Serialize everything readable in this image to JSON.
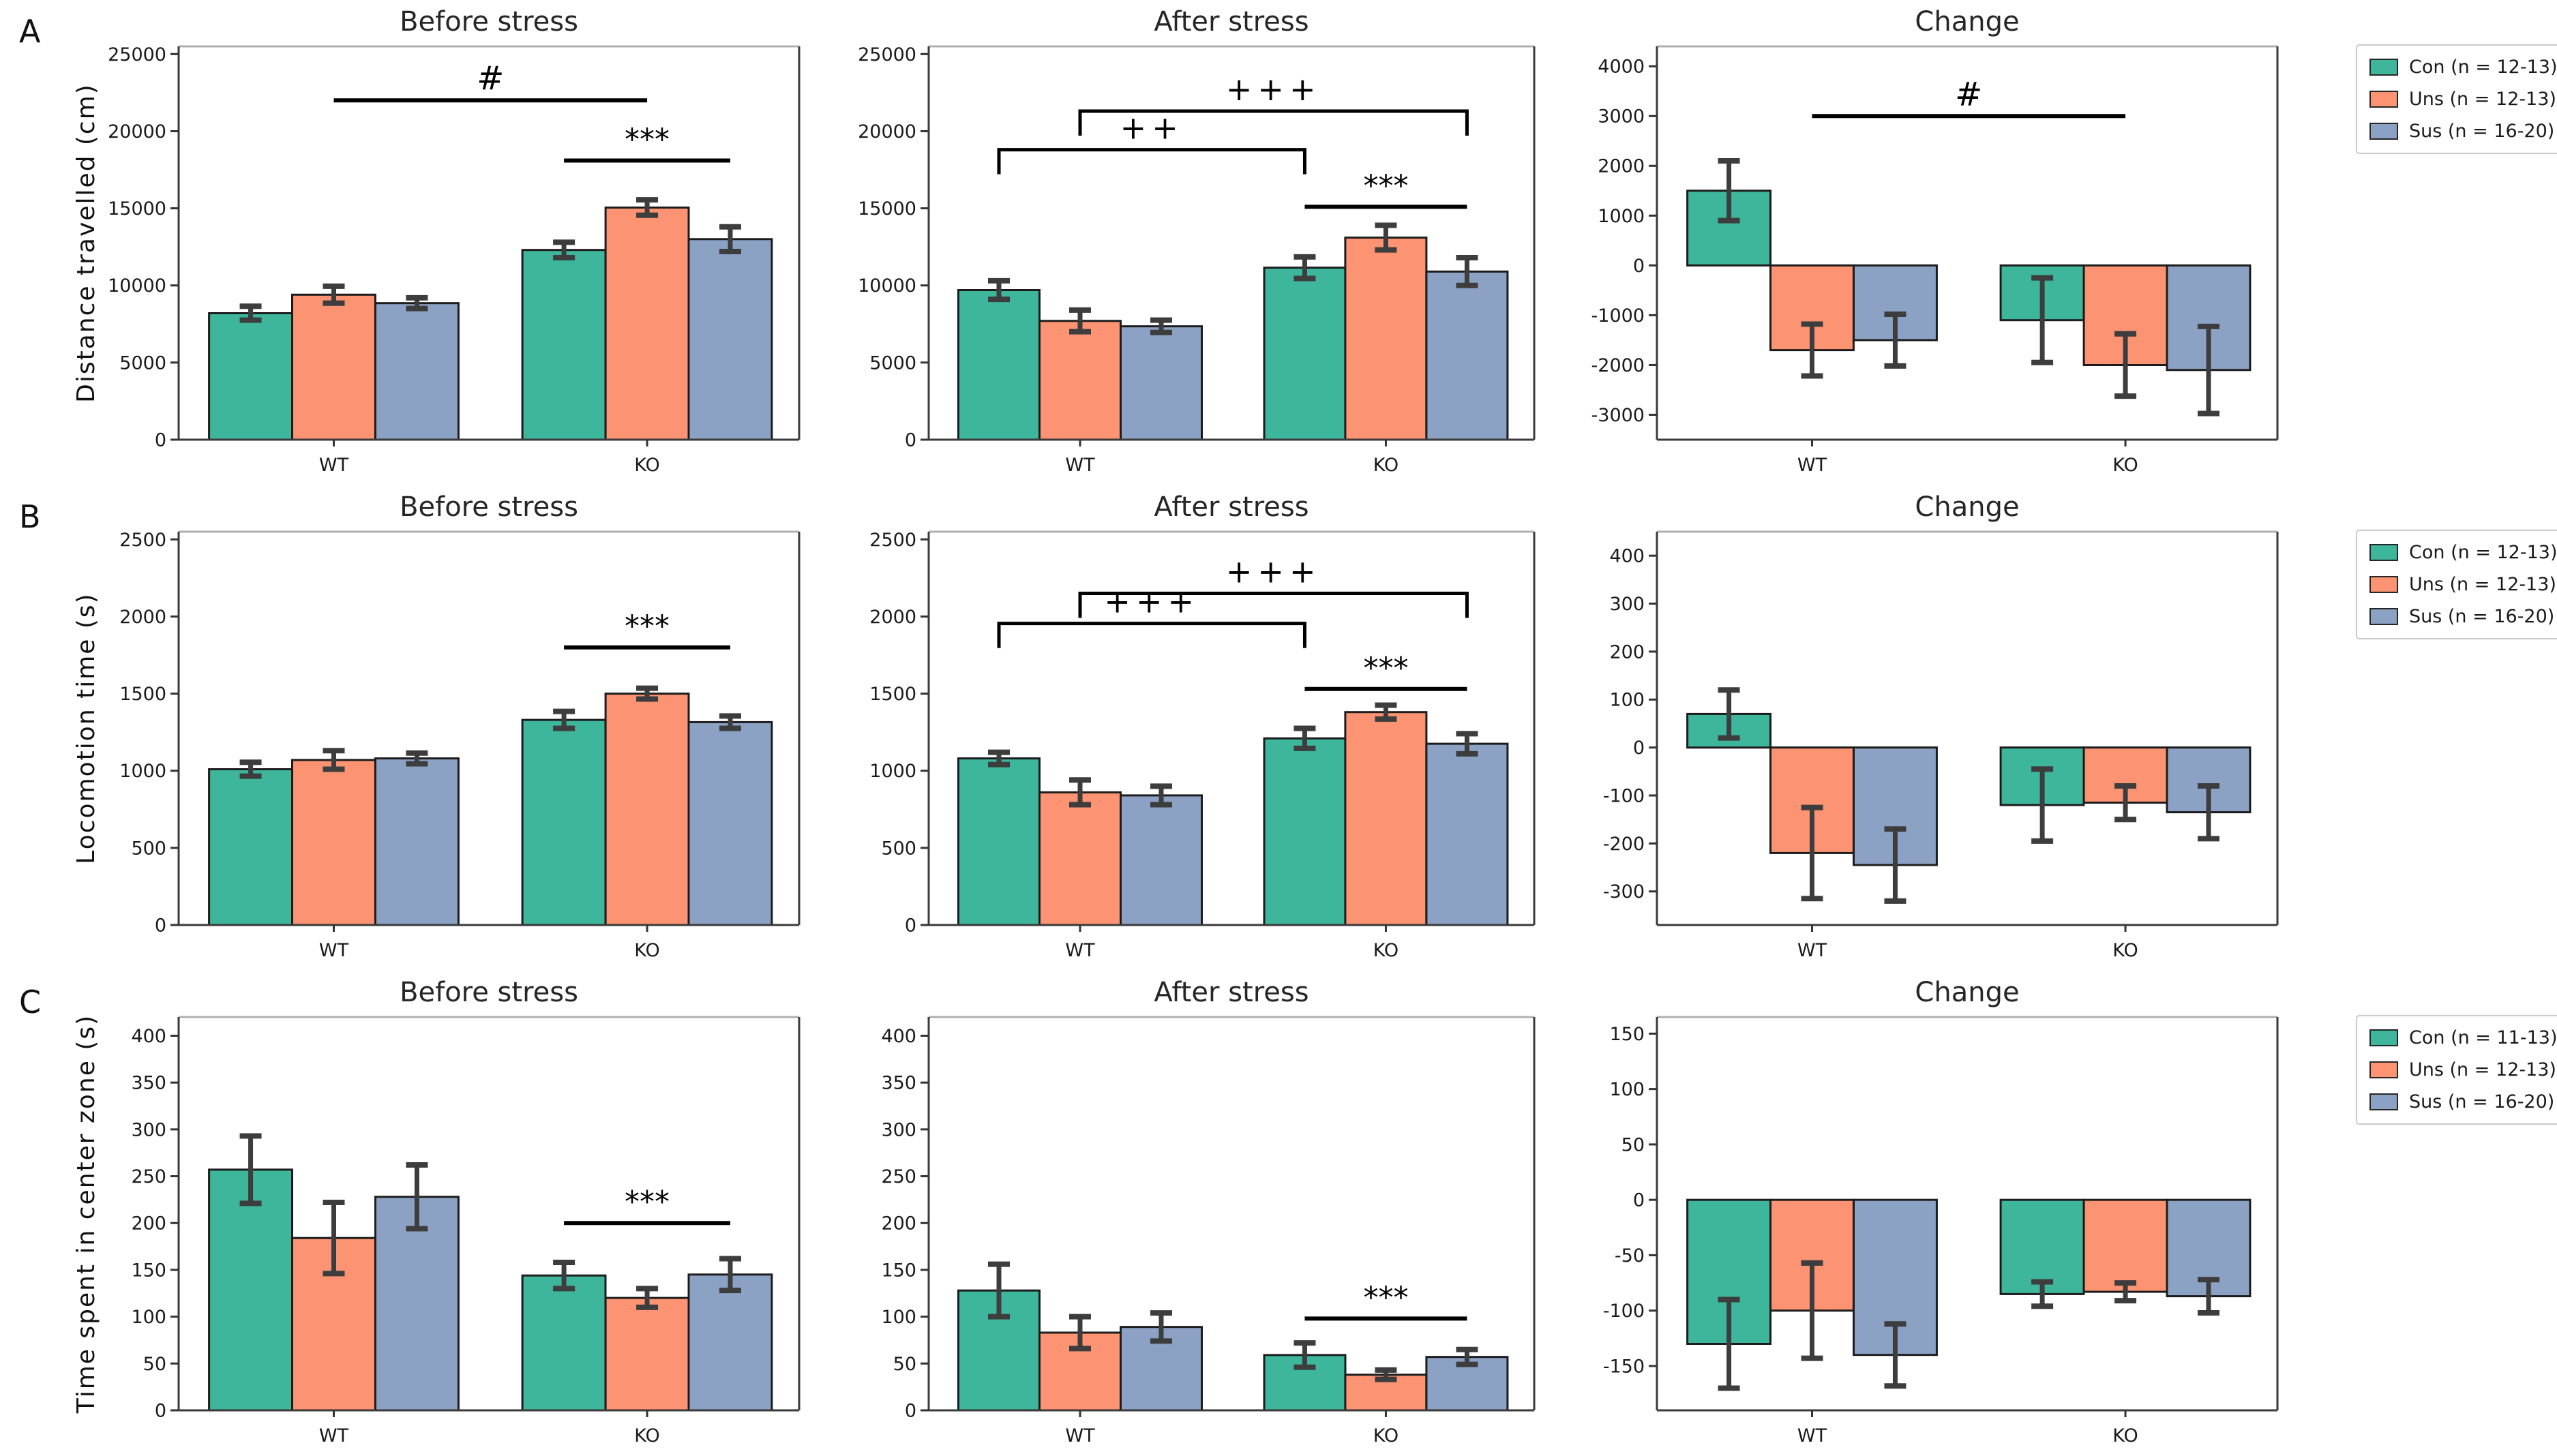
{
  "figure": {
    "background": "#ffffff",
    "series_colors": {
      "Con": "#3db69b",
      "Uns": "#fc9373",
      "Sus": "#8ca2c4"
    },
    "bar_edge_color": "#1c1c1c",
    "error_bar_color": "#3d3d3d",
    "annotation_color": "#000000",
    "categories": [
      "WT",
      "KO"
    ],
    "series_keys": [
      "Con",
      "Uns",
      "Sus"
    ],
    "column_titles": [
      "Before stress",
      "After stress",
      "Change"
    ],
    "rows": [
      {
        "letter": "A",
        "ylabel": "Distance travelled (cm)",
        "legend": [
          "Con (n = 12-13)",
          "Uns (n = 12-13)",
          "Sus (n = 16-20)"
        ]
      },
      {
        "letter": "B",
        "ylabel": "Locomotion time (s)",
        "legend": [
          "Con (n = 12-13)",
          "Uns (n = 12-13)",
          "Sus (n = 16-20)"
        ]
      },
      {
        "letter": "C",
        "ylabel": "Time spent in center zone (s)",
        "legend": [
          "Con (n = 11-13)",
          "Uns (n = 12-13)",
          "Sus (n = 16-20)"
        ]
      }
    ]
  },
  "chart_data": [
    {
      "row": 0,
      "col": 0,
      "type": "bar",
      "title": "Before stress",
      "ylabel": "Distance travelled (cm)",
      "categories": [
        "WT",
        "KO"
      ],
      "ylim": [
        0,
        25500
      ],
      "yticks": [
        0,
        5000,
        10000,
        15000,
        20000,
        25000
      ],
      "series": [
        {
          "name": "Con",
          "values": [
            8200,
            12300
          ],
          "errors": [
            450,
            500
          ]
        },
        {
          "name": "Uns",
          "values": [
            9400,
            15050
          ],
          "errors": [
            550,
            500
          ]
        },
        {
          "name": "Sus",
          "values": [
            8850,
            13000
          ],
          "errors": [
            350,
            800
          ]
        }
      ],
      "annotations": [
        {
          "style": "line",
          "label": "#",
          "x1": [
            0,
            -1
          ],
          "x2": [
            1,
            -1
          ],
          "y": 22000
        },
        {
          "style": "line",
          "label": "***",
          "x1": [
            1,
            0
          ],
          "x2": [
            1,
            2
          ],
          "y": 18100
        }
      ]
    },
    {
      "row": 0,
      "col": 1,
      "type": "bar",
      "title": "After stress",
      "ylabel": "",
      "categories": [
        "WT",
        "KO"
      ],
      "ylim": [
        0,
        25500
      ],
      "yticks": [
        0,
        5000,
        10000,
        15000,
        20000,
        25000
      ],
      "series": [
        {
          "name": "Con",
          "values": [
            9700,
            11150
          ],
          "errors": [
            600,
            700
          ]
        },
        {
          "name": "Uns",
          "values": [
            7700,
            13100
          ],
          "errors": [
            700,
            800
          ]
        },
        {
          "name": "Sus",
          "values": [
            7350,
            10900
          ],
          "errors": [
            400,
            900
          ]
        }
      ],
      "annotations": [
        {
          "style": "bracket",
          "label": "+++",
          "x1": [
            0,
            1
          ],
          "x2": [
            1,
            2
          ],
          "y": 21300
        },
        {
          "style": "bracket",
          "label": "++",
          "x1": [
            0,
            0
          ],
          "x2": [
            1,
            0
          ],
          "y": 18800
        },
        {
          "style": "line",
          "label": "***",
          "x1": [
            1,
            0
          ],
          "x2": [
            1,
            2
          ],
          "y": 15100
        }
      ]
    },
    {
      "row": 0,
      "col": 2,
      "type": "bar",
      "title": "Change",
      "ylabel": "",
      "categories": [
        "WT",
        "KO"
      ],
      "ylim": [
        -3500,
        4400
      ],
      "yticks": [
        -3000,
        -2000,
        -1000,
        0,
        1000,
        2000,
        3000,
        4000
      ],
      "series": [
        {
          "name": "Con",
          "values": [
            1500,
            -1100
          ],
          "errors": [
            600,
            850
          ]
        },
        {
          "name": "Uns",
          "values": [
            -1700,
            -2000
          ],
          "errors": [
            520,
            625
          ]
        },
        {
          "name": "Sus",
          "values": [
            -1500,
            -2100
          ],
          "errors": [
            520,
            875
          ]
        }
      ],
      "annotations": [
        {
          "style": "line",
          "label": "#",
          "x1": [
            0,
            -1
          ],
          "x2": [
            1,
            -1
          ],
          "y": 3000
        }
      ]
    },
    {
      "row": 1,
      "col": 0,
      "type": "bar",
      "title": "Before stress",
      "ylabel": "Locomotion time (s)",
      "categories": [
        "WT",
        "KO"
      ],
      "ylim": [
        0,
        2550
      ],
      "yticks": [
        0,
        500,
        1000,
        1500,
        2000,
        2500
      ],
      "series": [
        {
          "name": "Con",
          "values": [
            1010,
            1330
          ],
          "errors": [
            45,
            55
          ]
        },
        {
          "name": "Uns",
          "values": [
            1070,
            1500
          ],
          "errors": [
            60,
            35
          ]
        },
        {
          "name": "Sus",
          "values": [
            1080,
            1315
          ],
          "errors": [
            35,
            40
          ]
        }
      ],
      "annotations": [
        {
          "style": "line",
          "label": "***",
          "x1": [
            1,
            0
          ],
          "x2": [
            1,
            2
          ],
          "y": 1800
        }
      ]
    },
    {
      "row": 1,
      "col": 1,
      "type": "bar",
      "title": "After stress",
      "ylabel": "",
      "categories": [
        "WT",
        "KO"
      ],
      "ylim": [
        0,
        2550
      ],
      "yticks": [
        0,
        500,
        1000,
        1500,
        2000,
        2500
      ],
      "series": [
        {
          "name": "Con",
          "values": [
            1080,
            1210
          ],
          "errors": [
            40,
            65
          ]
        },
        {
          "name": "Uns",
          "values": [
            860,
            1380
          ],
          "errors": [
            80,
            45
          ]
        },
        {
          "name": "Sus",
          "values": [
            840,
            1175
          ],
          "errors": [
            60,
            65
          ]
        }
      ],
      "annotations": [
        {
          "style": "bracket",
          "label": "+++",
          "x1": [
            0,
            1
          ],
          "x2": [
            1,
            2
          ],
          "y": 2150
        },
        {
          "style": "bracket",
          "label": "+++",
          "x1": [
            0,
            0
          ],
          "x2": [
            1,
            0
          ],
          "y": 1955
        },
        {
          "style": "line",
          "label": "***",
          "x1": [
            1,
            0
          ],
          "x2": [
            1,
            2
          ],
          "y": 1530
        }
      ]
    },
    {
      "row": 1,
      "col": 2,
      "type": "bar",
      "title": "Change",
      "ylabel": "",
      "categories": [
        "WT",
        "KO"
      ],
      "ylim": [
        -370,
        450
      ],
      "yticks": [
        -300,
        -200,
        -100,
        0,
        100,
        200,
        300,
        400
      ],
      "series": [
        {
          "name": "Con",
          "values": [
            70,
            -120
          ],
          "errors": [
            50,
            75
          ]
        },
        {
          "name": "Uns",
          "values": [
            -220,
            -115
          ],
          "errors": [
            95,
            35
          ]
        },
        {
          "name": "Sus",
          "values": [
            -245,
            -135
          ],
          "errors": [
            75,
            55
          ]
        }
      ],
      "annotations": []
    },
    {
      "row": 2,
      "col": 0,
      "type": "bar",
      "title": "Before stress",
      "ylabel": "Time spent in center zone (s)",
      "categories": [
        "WT",
        "KO"
      ],
      "ylim": [
        0,
        420
      ],
      "yticks": [
        0,
        50,
        100,
        150,
        200,
        250,
        300,
        350,
        400
      ],
      "series": [
        {
          "name": "Con",
          "values": [
            257,
            144
          ],
          "errors": [
            36,
            14
          ]
        },
        {
          "name": "Uns",
          "values": [
            184,
            120
          ],
          "errors": [
            38,
            10
          ]
        },
        {
          "name": "Sus",
          "values": [
            228,
            145
          ],
          "errors": [
            34,
            17
          ]
        }
      ],
      "annotations": [
        {
          "style": "line",
          "label": "***",
          "x1": [
            1,
            0
          ],
          "x2": [
            1,
            2
          ],
          "y": 200
        }
      ]
    },
    {
      "row": 2,
      "col": 1,
      "type": "bar",
      "title": "After stress",
      "ylabel": "",
      "categories": [
        "WT",
        "KO"
      ],
      "ylim": [
        0,
        420
      ],
      "yticks": [
        0,
        50,
        100,
        150,
        200,
        250,
        300,
        350,
        400
      ],
      "series": [
        {
          "name": "Con",
          "values": [
            128,
            59
          ],
          "errors": [
            28,
            13
          ]
        },
        {
          "name": "Uns",
          "values": [
            83,
            38
          ],
          "errors": [
            17,
            5
          ]
        },
        {
          "name": "Sus",
          "values": [
            89,
            57
          ],
          "errors": [
            15,
            8
          ]
        }
      ],
      "annotations": [
        {
          "style": "line",
          "label": "***",
          "x1": [
            1,
            0
          ],
          "x2": [
            1,
            2
          ],
          "y": 98
        }
      ]
    },
    {
      "row": 2,
      "col": 2,
      "type": "bar",
      "title": "Change",
      "ylabel": "",
      "categories": [
        "WT",
        "KO"
      ],
      "ylim": [
        -190,
        165
      ],
      "yticks": [
        -150,
        -100,
        -50,
        0,
        50,
        100,
        150
      ],
      "series": [
        {
          "name": "Con",
          "values": [
            -130,
            -85
          ],
          "errors": [
            40,
            11
          ]
        },
        {
          "name": "Uns",
          "values": [
            -100,
            -83
          ],
          "errors": [
            43,
            8
          ]
        },
        {
          "name": "Sus",
          "values": [
            -140,
            -87
          ],
          "errors": [
            28,
            15
          ]
        }
      ],
      "annotations": []
    }
  ]
}
